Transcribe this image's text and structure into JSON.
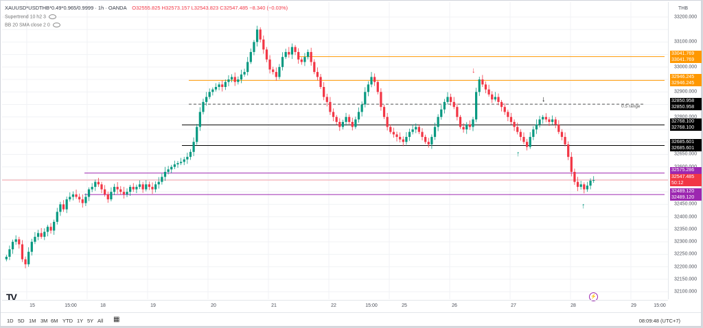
{
  "legend": {
    "symbol": "XAUUSD*USDTHB*0.49*0.965/0.9999 · 1h · OANDA",
    "ohlc": "O32555.825 H32573.157 L32543.823 C32547.485 −8.340 (−0.03%)"
  },
  "indicators": [
    {
      "label": "Supertrend 10 h2 3"
    },
    {
      "label": "BB 20 SMA close 2 0"
    }
  ],
  "currency": "THB",
  "y_axis": {
    "ticks": [
      "33200.000",
      "33100.000",
      "33000.000",
      "32900.000",
      "32800.000",
      "32750.000",
      "32700.000",
      "32650.000",
      "32600.000",
      "32500.000",
      "32450.000",
      "32400.000",
      "32350.000",
      "32300.000",
      "32250.000",
      "32200.000",
      "32150.000",
      "32100.000"
    ],
    "tags": [
      {
        "text": "33041.769",
        "value": 33041.769,
        "color": "#ff9800",
        "text2": "33041.769"
      },
      {
        "text": "32946.245",
        "value": 32946.245,
        "color": "#ff9800",
        "text2": "32946.245"
      },
      {
        "text": "32850.958",
        "value": 32850.958,
        "color": "#000000",
        "text2": "32850.958"
      },
      {
        "text": "32768.100",
        "value": 32768.1,
        "color": "#000000",
        "text2": "32768.100"
      },
      {
        "text": "32685.601",
        "value": 32685.601,
        "color": "#000000",
        "text2": "32685.601"
      },
      {
        "text": "32575.286",
        "value": 32575.286,
        "color": "#9c27b0",
        "text2": "32575.286"
      },
      {
        "text": "32547.485",
        "value": 32547.485,
        "color": "#f23645",
        "text2": "50:12"
      },
      {
        "text": "32489.120",
        "value": 32489.12,
        "color": "#9c27b0",
        "text2": "32489.120"
      }
    ]
  },
  "x_axis": {
    "labels": [
      "15",
      "15:00",
      "18",
      "19",
      "20",
      "21",
      "22",
      "15:00",
      "25",
      "26",
      "27",
      "28",
      "29",
      "15:00"
    ]
  },
  "range_label": "0.5 range",
  "timeframes": [
    "1D",
    "5D",
    "1M",
    "3M",
    "6M",
    "YTD",
    "1Y",
    "5Y",
    "All"
  ],
  "clock": "08:09:48 (UTC+7)",
  "logo": "TV",
  "chart_data": {
    "type": "candlestick",
    "ylim": [
      32070,
      33260
    ],
    "levels": [
      {
        "value": 33041.769,
        "color": "#ff9800"
      },
      {
        "value": 32946.245,
        "color": "#ff9800"
      },
      {
        "value": 32850.958,
        "color": "#555555",
        "dashed": true
      },
      {
        "value": 32768.1,
        "color": "#000000"
      },
      {
        "value": 32685.601,
        "color": "#000000"
      },
      {
        "value": 32575.286,
        "color": "#9c27b0"
      },
      {
        "value": 32489.12,
        "color": "#9c27b0"
      }
    ],
    "closes": [
      32240,
      32270,
      32300,
      32310,
      32290,
      32230,
      32210,
      32260,
      32300,
      32320,
      32335,
      32320,
      32340,
      32360,
      32345,
      32380,
      32420,
      32450,
      32430,
      32470,
      32480,
      32490,
      32480,
      32470,
      32455,
      32480,
      32510,
      32520,
      32540,
      32530,
      32510,
      32490,
      32470,
      32500,
      32520,
      32510,
      32500,
      32490,
      32500,
      32520,
      32510,
      32520,
      32530,
      32510,
      32530,
      32520,
      32510,
      32530,
      32540,
      32560,
      32580,
      32590,
      32600,
      32610,
      32615,
      32620,
      32630,
      32640,
      32660,
      32700,
      32760,
      32820,
      32860,
      32880,
      32900,
      32910,
      32920,
      32930,
      32920,
      32940,
      32950,
      32960,
      32940,
      32950,
      32970,
      32980,
      33020,
      33060,
      33100,
      33150,
      33110,
      33070,
      33030,
      32990,
      32980,
      32960,
      33000,
      33040,
      33060,
      33050,
      33080,
      33060,
      33030,
      33020,
      33040,
      33060,
      33020,
      32980,
      32960,
      32920,
      32880,
      32860,
      32820,
      32800,
      32780,
      32760,
      32780,
      32800,
      32780,
      32760,
      32790,
      32820,
      32850,
      32900,
      32930,
      32960,
      32940,
      32900,
      32840,
      32800,
      32760,
      32740,
      32730,
      32720,
      32710,
      32700,
      32720,
      32740,
      32750,
      32760,
      32740,
      32720,
      32700,
      32690,
      32720,
      32760,
      32800,
      32830,
      32860,
      32880,
      32860,
      32840,
      32800,
      32760,
      32750,
      32770,
      32760,
      32790,
      32900,
      32950,
      32930,
      32910,
      32890,
      32870,
      32880,
      32860,
      32840,
      32820,
      32800,
      32780,
      32760,
      32740,
      32720,
      32700,
      32680,
      32720,
      32750,
      32770,
      32790,
      32800,
      32790,
      32780,
      32790,
      32770,
      32740,
      32720,
      32690,
      32640,
      32580,
      32540,
      32520,
      32530,
      32510,
      32525,
      32545,
      32547
    ]
  }
}
